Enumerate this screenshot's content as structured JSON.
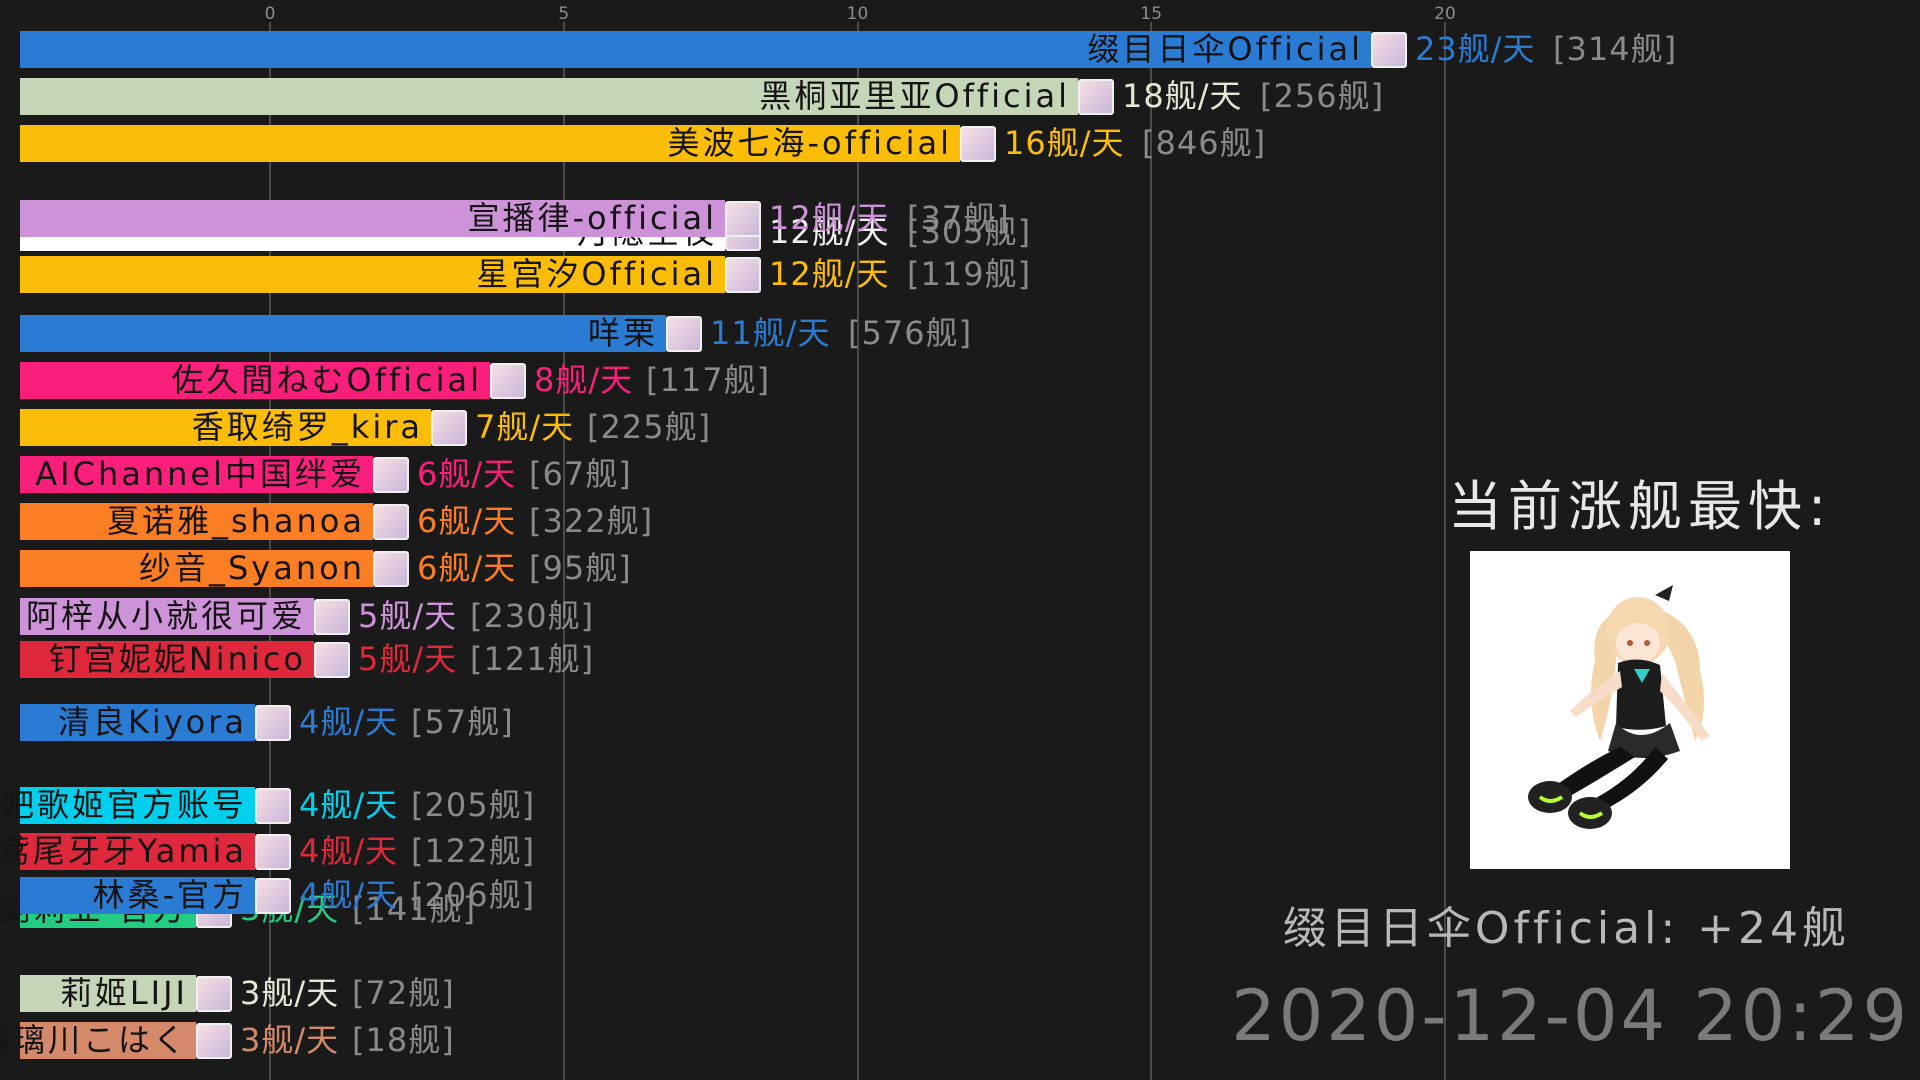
{
  "chart_data": {
    "type": "bar",
    "orientation": "horizontal",
    "xlim": [
      0,
      28
    ],
    "ticks": [
      0,
      5,
      10,
      15,
      20
    ],
    "value_suffix": "舰/天",
    "categories": [
      "缀目日伞Official",
      "黑桐亚里亚Official",
      "美波七海-official",
      "宣播律-official",
      "月隐空夜",
      "星宫汐Official",
      "咩栗",
      "佐久間ねむOfficial",
      "香取绮罗_kira",
      "AIChannel中国绊爱",
      "夏诺雅_shanoa",
      "纱音_Syanon",
      "阿梓从小就很可爱",
      "钉宫妮妮Ninico",
      "清良Kiyora",
      "战斗吧歌姬官方账号",
      "鸢尾牙牙Yamia",
      "林桑-官方",
      "御剑莉亚-官方",
      "莉姬LIJI",
      "瑠璃川こはく"
    ],
    "values": [
      23,
      18,
      16,
      12,
      12,
      12,
      11,
      8,
      7,
      6,
      6,
      6,
      5,
      5,
      4,
      4,
      4,
      4,
      3,
      3,
      3
    ],
    "value_labels": [
      "23舰/天",
      "18舰/天",
      "16舰/天",
      "12舰/天",
      "12舰/天",
      "12舰/天",
      "11舰/天",
      "8舰/天",
      "7舰/天",
      "6舰/天",
      "6舰/天",
      "6舰/天",
      "5舰/天",
      "5舰/天",
      "4舰/天",
      "4舰/天",
      "4舰/天",
      "4舰/天",
      "3舰/天",
      "3舰/天",
      "3舰/天"
    ],
    "totals": [
      "[314舰]",
      "[256舰]",
      "[846舰]",
      "[37舰]",
      "[305舰]",
      "[119舰]",
      "[576舰]",
      "[117舰]",
      "[225舰]",
      "[67舰]",
      "[322舰]",
      "[95舰]",
      "[230舰]",
      "[121舰]",
      "[57舰]",
      "[205舰]",
      "[122舰]",
      "[206舰]",
      "[141舰]",
      "[72舰]",
      "[18舰]"
    ],
    "colors": [
      "#2a7bd4",
      "#c5d6b8",
      "#fbbd08",
      "#cd92d8",
      "#ffffff",
      "#fbbd08",
      "#2a7bd4",
      "#fa1f7b",
      "#fbbd08",
      "#fa1f7b",
      "#fb7d24",
      "#fb7d24",
      "#cd92d8",
      "#e0283c",
      "#2a7bd4",
      "#00d0ee",
      "#e0283c",
      "#2a7bd4",
      "#22cc80",
      "#c5d6b8",
      "#d4896a"
    ],
    "grid": true,
    "legend": "none"
  },
  "side_panel": {
    "title": "当前涨舰最快:",
    "highlight": "缀目日伞Official: +24舰"
  },
  "timestamp": "2020-12-04 20:29",
  "icons": {
    "avatar": "avatar-thumbnail",
    "featured": "anime-girl-illustration"
  }
}
